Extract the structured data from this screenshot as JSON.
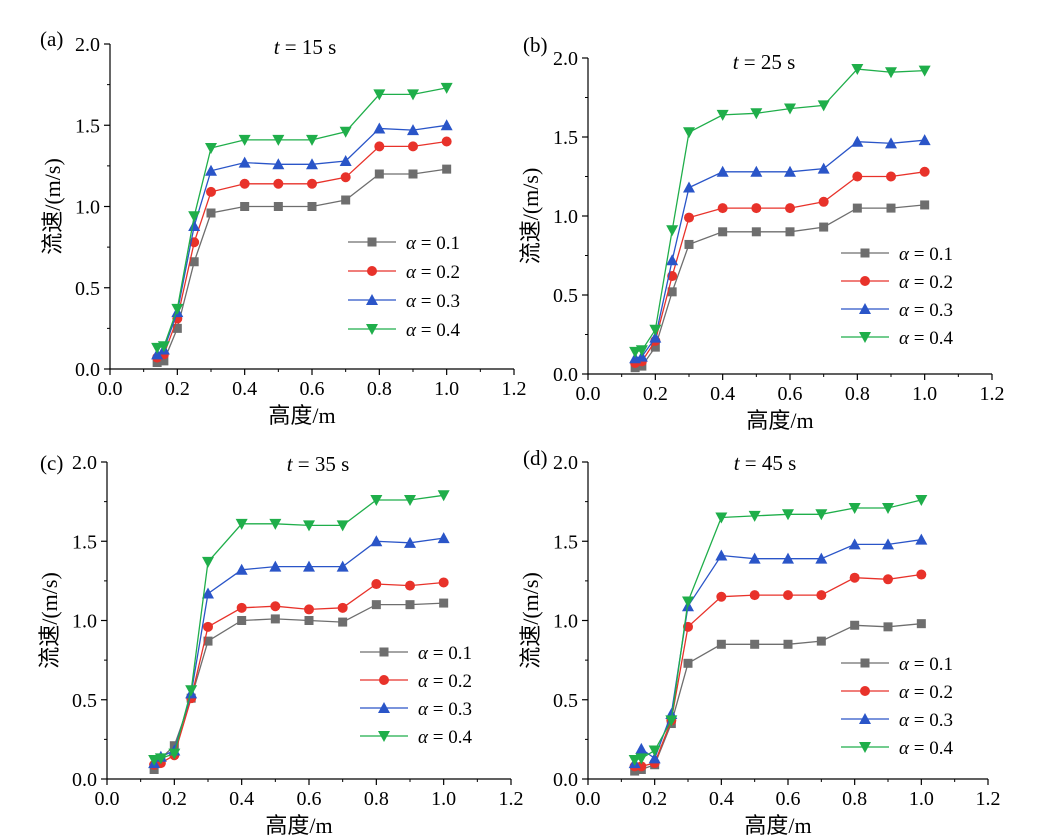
{
  "legend_prefix": "α",
  "chart_data": [
    {
      "type": "line",
      "panel_label": "(a)",
      "title_italic": "t",
      "title_rest": " = 15 s",
      "xlabel": "高度/m",
      "ylabel": "流速/(m/s)",
      "xlim": [
        0,
        1.2
      ],
      "ylim": [
        0,
        2.0
      ],
      "xticks": [
        "0.0",
        "0.2",
        "0.4",
        "0.6",
        "0.8",
        "1.0",
        "1.2"
      ],
      "yticks": [
        "0.0",
        "0.5",
        "1.0",
        "1.5",
        "2.0"
      ],
      "x": [
        0.14,
        0.16,
        0.2,
        0.25,
        0.3,
        0.4,
        0.5,
        0.6,
        0.7,
        0.8,
        0.9,
        1.0
      ],
      "legend_position": "center-right",
      "series": [
        {
          "name": " = 0.1",
          "color": "#6e6e6e",
          "marker": "square",
          "values": [
            0.04,
            0.05,
            0.25,
            0.66,
            0.96,
            1.0,
            1.0,
            1.0,
            1.04,
            1.2,
            1.2,
            1.23
          ]
        },
        {
          "name": " = 0.2",
          "color": "#e8322a",
          "marker": "circle",
          "values": [
            0.07,
            0.09,
            0.31,
            0.78,
            1.09,
            1.14,
            1.14,
            1.14,
            1.18,
            1.37,
            1.37,
            1.4
          ]
        },
        {
          "name": " = 0.3",
          "color": "#2a55c8",
          "marker": "triangle-up",
          "values": [
            0.09,
            0.12,
            0.35,
            0.88,
            1.22,
            1.27,
            1.26,
            1.26,
            1.28,
            1.48,
            1.47,
            1.5
          ]
        },
        {
          "name": " = 0.4",
          "color": "#1fae4a",
          "marker": "triangle-down",
          "values": [
            0.13,
            0.14,
            0.37,
            0.94,
            1.36,
            1.41,
            1.41,
            1.41,
            1.46,
            1.69,
            1.69,
            1.73
          ]
        }
      ]
    },
    {
      "type": "line",
      "panel_label": "(b)",
      "title_italic": "t",
      "title_rest": " = 25 s",
      "xlabel": "高度/m",
      "ylabel": "流速/(m/s)",
      "xlim": [
        0,
        1.2
      ],
      "ylim": [
        0,
        2.0
      ],
      "xticks": [
        "0.0",
        "0.2",
        "0.4",
        "0.6",
        "0.8",
        "1.0",
        "1.2"
      ],
      "yticks": [
        "0.0",
        "0.5",
        "1.0",
        "1.5",
        "2.0"
      ],
      "x": [
        0.14,
        0.16,
        0.2,
        0.25,
        0.3,
        0.4,
        0.5,
        0.6,
        0.7,
        0.8,
        0.9,
        1.0
      ],
      "legend_position": "lower-right",
      "series": [
        {
          "name": " = 0.1",
          "color": "#6e6e6e",
          "marker": "square",
          "values": [
            0.04,
            0.05,
            0.17,
            0.52,
            0.82,
            0.9,
            0.9,
            0.9,
            0.93,
            1.05,
            1.05,
            1.07
          ]
        },
        {
          "name": " = 0.2",
          "color": "#e8322a",
          "marker": "circle",
          "values": [
            0.07,
            0.08,
            0.21,
            0.62,
            0.99,
            1.05,
            1.05,
            1.05,
            1.09,
            1.25,
            1.25,
            1.28
          ]
        },
        {
          "name": " = 0.3",
          "color": "#2a55c8",
          "marker": "triangle-up",
          "values": [
            0.1,
            0.11,
            0.23,
            0.72,
            1.18,
            1.28,
            1.28,
            1.28,
            1.3,
            1.47,
            1.46,
            1.48
          ]
        },
        {
          "name": " = 0.4",
          "color": "#1fae4a",
          "marker": "triangle-down",
          "values": [
            0.14,
            0.15,
            0.28,
            0.91,
            1.53,
            1.64,
            1.65,
            1.68,
            1.7,
            1.93,
            1.91,
            1.92
          ]
        }
      ]
    },
    {
      "type": "line",
      "panel_label": "(c)",
      "title_italic": "t",
      "title_rest": " = 35 s",
      "xlabel": "高度/m",
      "ylabel": "流速/(m/s)",
      "xlim": [
        0,
        1.2
      ],
      "ylim": [
        0,
        2.0
      ],
      "xticks": [
        "0.0",
        "0.2",
        "0.4",
        "0.6",
        "0.8",
        "1.0",
        "1.2"
      ],
      "yticks": [
        "0.0",
        "0.5",
        "1.0",
        "1.5",
        "2.0"
      ],
      "x": [
        0.14,
        0.16,
        0.2,
        0.25,
        0.3,
        0.4,
        0.5,
        0.6,
        0.7,
        0.8,
        0.9,
        1.0
      ],
      "legend_position": "lower-right",
      "series": [
        {
          "name": " = 0.1",
          "color": "#6e6e6e",
          "marker": "square",
          "values": [
            0.06,
            0.13,
            0.21,
            0.51,
            0.87,
            1.0,
            1.01,
            1.0,
            0.99,
            1.1,
            1.1,
            1.11
          ]
        },
        {
          "name": " = 0.2",
          "color": "#e8322a",
          "marker": "circle",
          "values": [
            0.09,
            0.1,
            0.15,
            0.51,
            0.96,
            1.08,
            1.09,
            1.07,
            1.08,
            1.23,
            1.22,
            1.24
          ]
        },
        {
          "name": " = 0.3",
          "color": "#2a55c8",
          "marker": "triangle-up",
          "values": [
            0.1,
            0.14,
            0.18,
            0.54,
            1.17,
            1.32,
            1.34,
            1.34,
            1.34,
            1.5,
            1.49,
            1.52
          ]
        },
        {
          "name": " = 0.4",
          "color": "#1fae4a",
          "marker": "triangle-down",
          "values": [
            0.12,
            0.13,
            0.16,
            0.56,
            1.37,
            1.61,
            1.61,
            1.6,
            1.6,
            1.76,
            1.76,
            1.79
          ]
        }
      ]
    },
    {
      "type": "line",
      "panel_label": "(d)",
      "title_italic": "t",
      "title_rest": " = 45 s",
      "xlabel": "高度/m",
      "ylabel": "流速/(m/s)",
      "xlim": [
        0,
        1.2
      ],
      "ylim": [
        0,
        2.0
      ],
      "xticks": [
        "0.0",
        "0.2",
        "0.4",
        "0.6",
        "0.8",
        "1.0",
        "1.2"
      ],
      "yticks": [
        "0.0",
        "0.5",
        "1.0",
        "1.5",
        "2.0"
      ],
      "x": [
        0.14,
        0.16,
        0.2,
        0.25,
        0.3,
        0.4,
        0.5,
        0.6,
        0.7,
        0.8,
        0.9,
        1.0
      ],
      "legend_position": "lower-right",
      "series": [
        {
          "name": " = 0.1",
          "color": "#6e6e6e",
          "marker": "square",
          "values": [
            0.05,
            0.06,
            0.09,
            0.35,
            0.73,
            0.85,
            0.85,
            0.85,
            0.87,
            0.97,
            0.96,
            0.98
          ]
        },
        {
          "name": " = 0.2",
          "color": "#e8322a",
          "marker": "circle",
          "values": [
            0.08,
            0.08,
            0.1,
            0.37,
            0.96,
            1.15,
            1.16,
            1.16,
            1.16,
            1.27,
            1.26,
            1.29
          ]
        },
        {
          "name": " = 0.3",
          "color": "#2a55c8",
          "marker": "triangle-up",
          "values": [
            0.1,
            0.19,
            0.13,
            0.41,
            1.09,
            1.41,
            1.39,
            1.39,
            1.39,
            1.48,
            1.48,
            1.51
          ]
        },
        {
          "name": " = 0.4",
          "color": "#1fae4a",
          "marker": "triangle-down",
          "values": [
            0.12,
            0.13,
            0.18,
            0.37,
            1.12,
            1.65,
            1.66,
            1.67,
            1.67,
            1.71,
            1.71,
            1.76
          ]
        }
      ]
    }
  ]
}
